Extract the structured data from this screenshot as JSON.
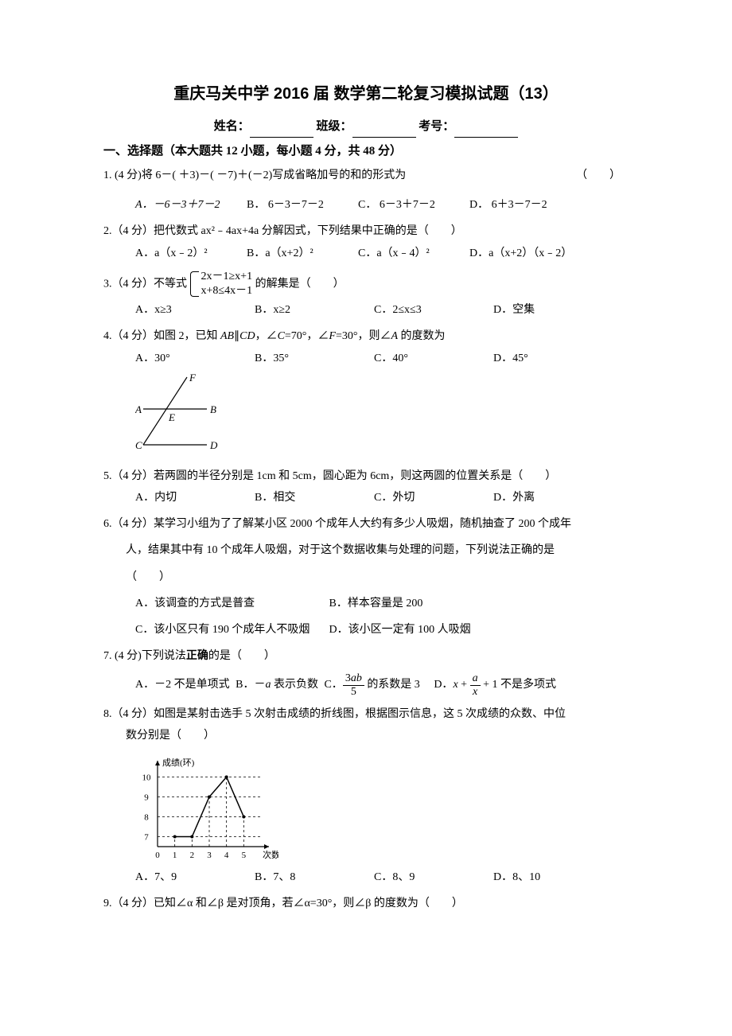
{
  "title": "重庆马关中学 2016 届  数学第二轮复习模拟试题（13）",
  "info": {
    "name_label": "姓名：",
    "class_label": "班级：",
    "id_label": "考号："
  },
  "section1": "一、选择题（本大题共 12 小题，每小题 4 分，共 48 分）",
  "q1": {
    "stem": "1. (4 分)将 6－( ＋3)－( －7)＋(－2)写成省略加号的和的形式为",
    "optA": "A．－6－3＋7－2",
    "optB": "B．  6－3－7－2",
    "optC": "C．  6－3＋7－2",
    "optD": "D．  6＋3－7－2"
  },
  "q2": {
    "stem": "2.（4 分）把代数式 ax²﹣4ax+4a 分解因式，下列结果中正确的是（　　）",
    "optA": "A．a（x﹣2）²",
    "optB": "B．a（x+2）²",
    "optC": "C．a（x﹣4）²",
    "optD": "D．a（x+2）（x﹣2）"
  },
  "q3": {
    "stem_prefix": "3.（4 分）不等式",
    "eq1": "2x－1≥x+1",
    "eq2": "x+8≤4x－1",
    "stem_suffix": "的解集是（　　）",
    "optA": "A．x≥3",
    "optB": "B．x≥2",
    "optC": "C．2≤x≤3",
    "optD": "D．空集"
  },
  "q4": {
    "stem": "4.（4 分）如图 2，已知 AB∥CD，∠C=70°，∠F=30°，则∠A 的度数为",
    "optA": "A．30°",
    "optB": "B．35°",
    "optC": "C．40°",
    "optD": "D．45°",
    "figure": {
      "labels": {
        "A": "A",
        "B": "B",
        "C": "C",
        "D": "D",
        "E": "E",
        "F": "F"
      },
      "line_color": "#000000",
      "font_size": 13
    }
  },
  "q5": {
    "stem": "5.（4 分）若两圆的半径分别是 1cm 和 5cm，圆心距为 6cm，则这两圆的位置关系是（　　）",
    "optA": "A．内切",
    "optB": "B．相交",
    "optC": "C．外切",
    "optD": "D．外离"
  },
  "q6": {
    "stem1": "6.（4 分）某学习小组为了了解某小区 2000 个成年人大约有多少人吸烟，随机抽查了 200 个成年",
    "stem2": "人，结果其中有 10 个成年人吸烟，对于这个数据收集与处理的问题，下列说法正确的是",
    "stem3": "（　　）",
    "optA": "A．该调查的方式是普查",
    "optB": "B．样本容量是 200",
    "optC": "C．该小区只有 190 个成年人不吸烟",
    "optD": "D．该小区一定有 100 人吸烟"
  },
  "q7": {
    "stem": "7. (4 分)下列说法正确的是（　　）",
    "optA_pre": "A．－2 不是单项式",
    "optB_pre": "B．－a 表示负数",
    "optC_pre": "C．",
    "optC_num": "3ab",
    "optC_den": "5",
    "optC_suf": " 的系数是 3",
    "optD_pre": "D．",
    "optD_expr_pre": "x + ",
    "optD_num": "a",
    "optD_den": "x",
    "optD_expr_suf": " + 1",
    "optD_suf": " 不是多项式"
  },
  "q8": {
    "stem1": "8.（4 分）如图是某射击选手 5 次射击成绩的折线图，根据图示信息，这 5 次成绩的众数、中位",
    "stem2": "数分别是（　　）",
    "optA": "A．7、9",
    "optB": "B．7、8",
    "optC": "C．8、9",
    "optD": "D．8、10",
    "chart": {
      "type": "line",
      "y_label": "成绩(环)",
      "x_label": "次数",
      "x_values": [
        1,
        2,
        3,
        4,
        5
      ],
      "y_values": [
        7,
        7,
        9,
        10,
        8
      ],
      "y_ticks": [
        7,
        8,
        9,
        10
      ],
      "x_ticks": [
        0,
        1,
        2,
        3,
        4,
        5
      ],
      "line_color": "#000000",
      "grid_color": "#000000",
      "grid_dash": "3,3",
      "background_color": "#ffffff",
      "font_size": 11
    }
  },
  "q9": {
    "stem": "9.（4 分）已知∠α 和∠β 是对顶角，若∠α=30°，则∠β 的度数为（　　）"
  }
}
